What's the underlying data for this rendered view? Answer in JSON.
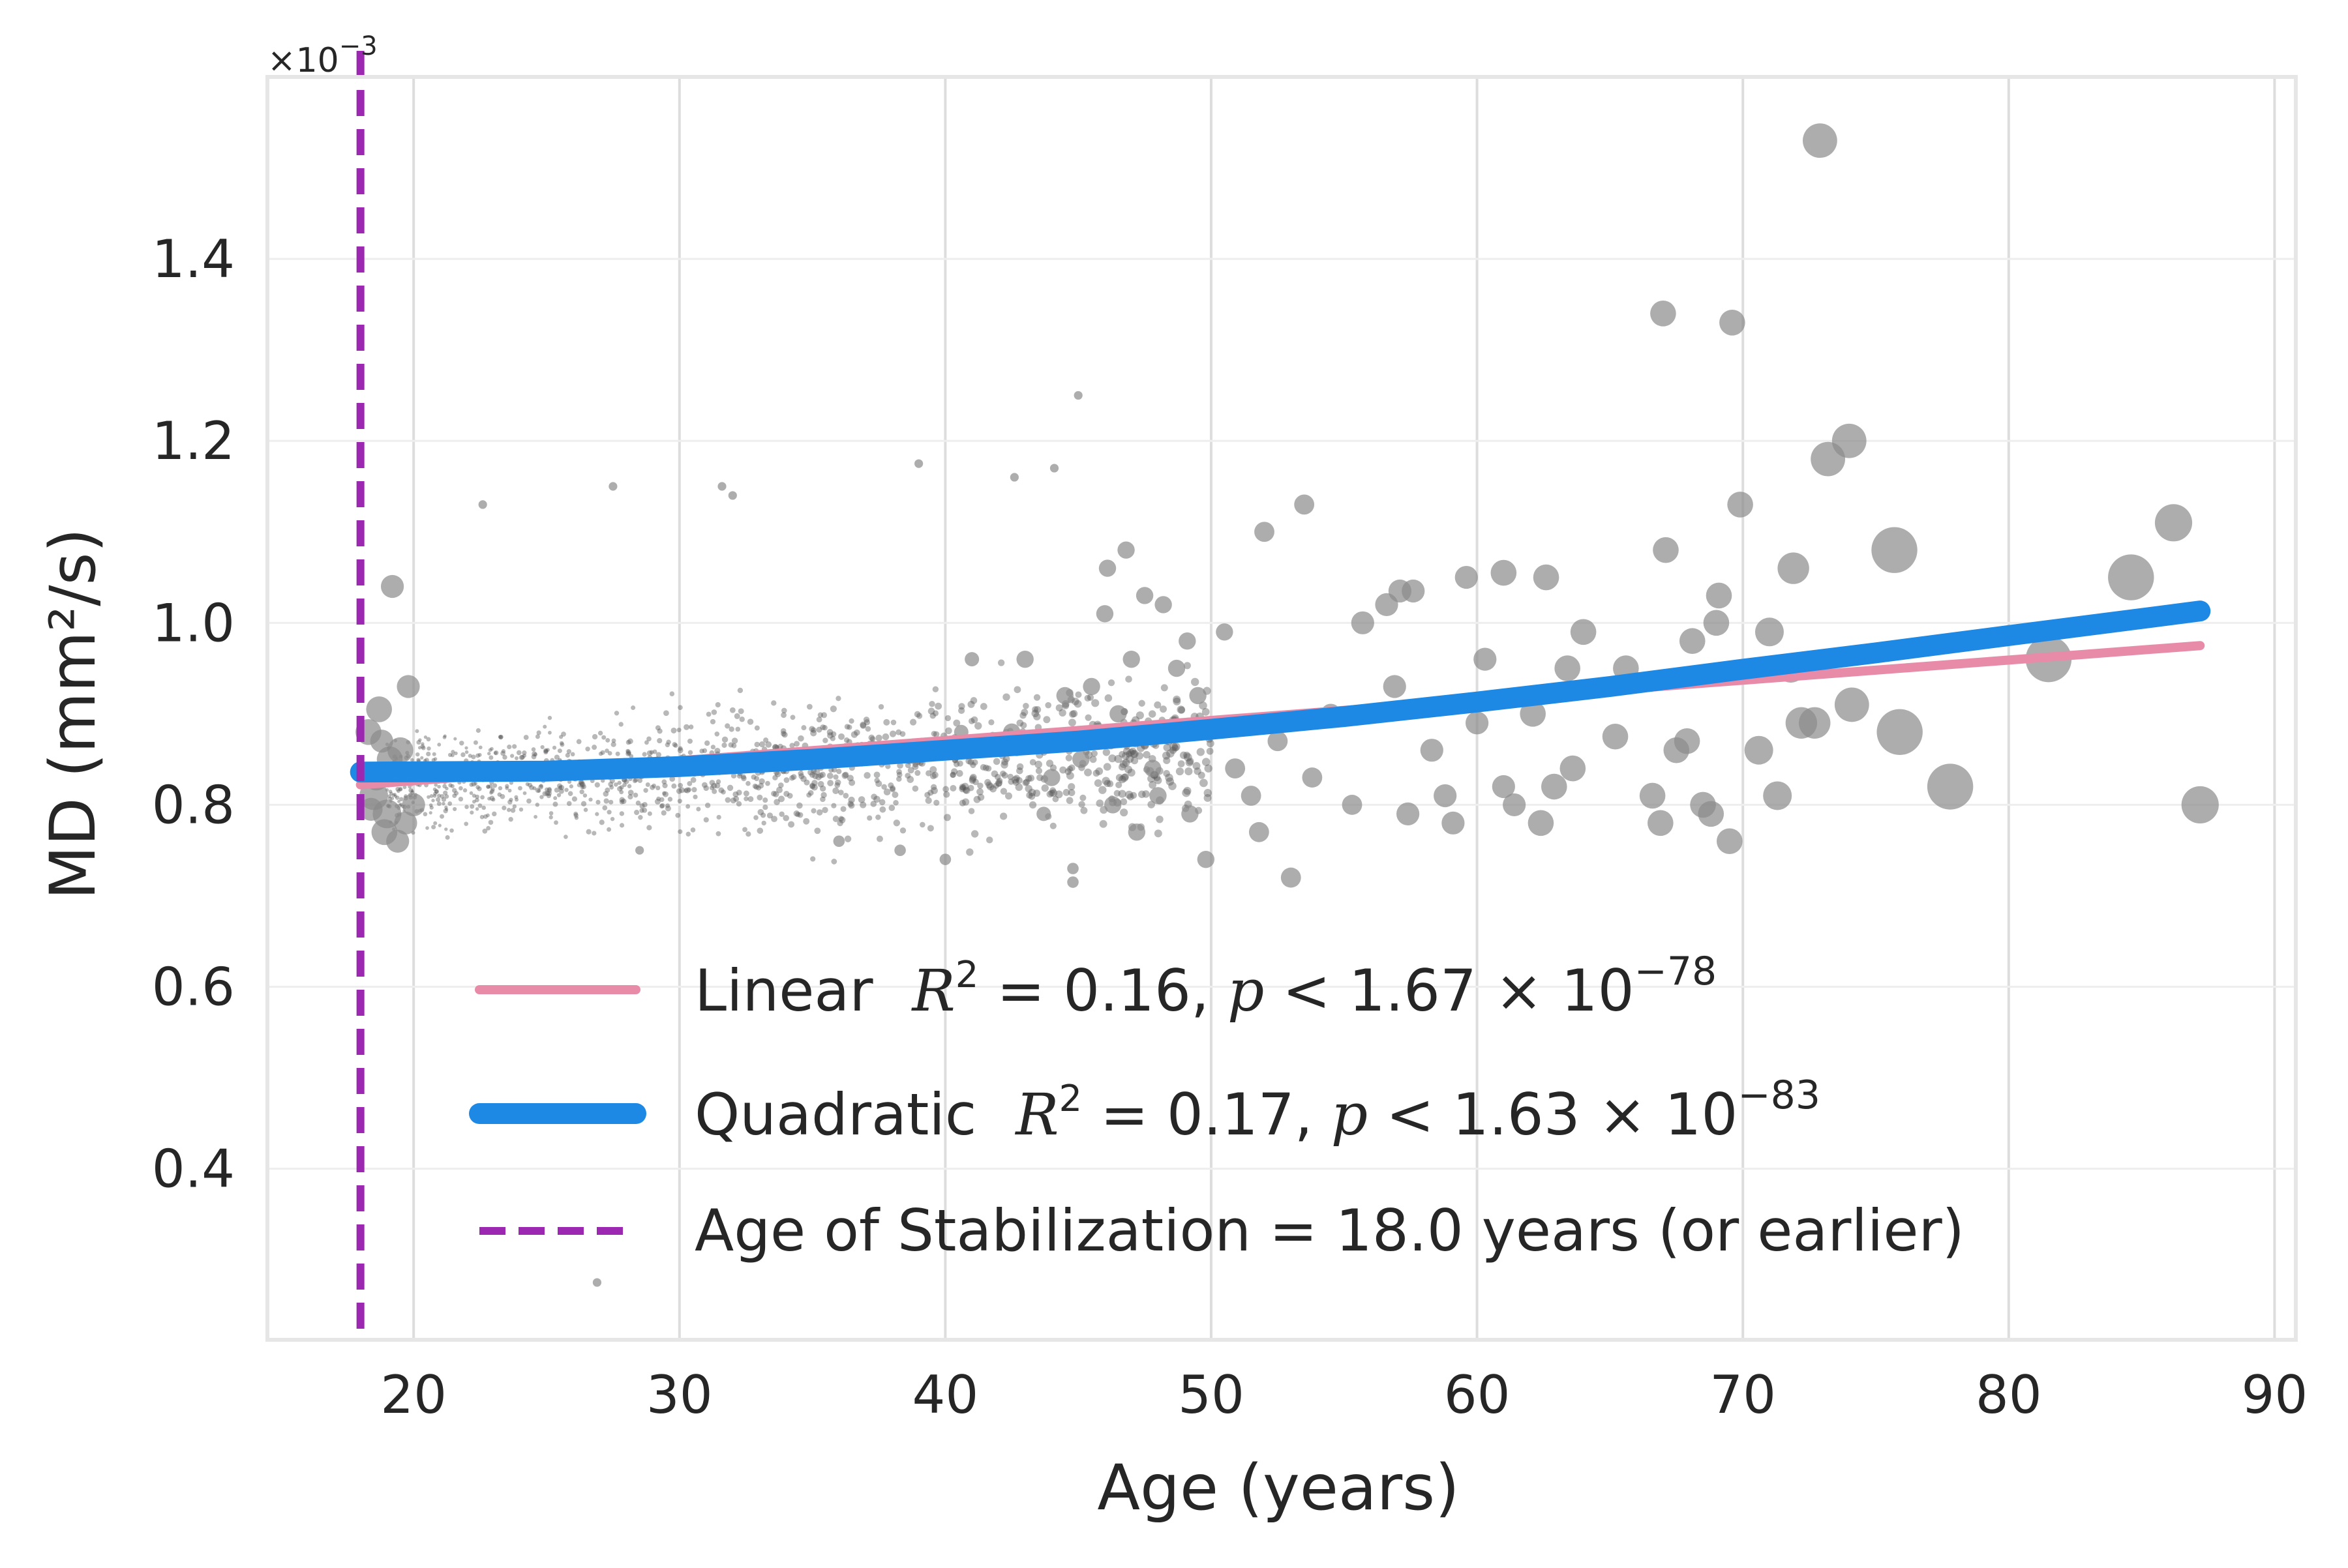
{
  "chart_data": {
    "type": "scatter",
    "xlabel": "Age (years)",
    "ylabel": "MD (mm²/s)",
    "y_multiplier": "×10",
    "y_multiplier_exp": "−3",
    "xlim": [
      14.5,
      90.8
    ],
    "ylim": [
      0.212,
      1.6
    ],
    "x_ticks": [
      20,
      30,
      40,
      50,
      60,
      70,
      80,
      90
    ],
    "x_tick_labels": [
      "20",
      "30",
      "40",
      "50",
      "60",
      "70",
      "80",
      "90"
    ],
    "y_ticks": [
      0.4,
      0.6,
      0.8,
      1.0,
      1.2,
      1.4
    ],
    "y_tick_labels": [
      "0.4",
      "0.6",
      "0.8",
      "1.0",
      "1.2",
      "1.4"
    ],
    "grid": true,
    "legend_position": "lower-right",
    "series": [
      {
        "name": "Linear",
        "kind": "line",
        "color": "#e78ba8",
        "x": [
          18.0,
          87.2
        ],
        "y": [
          0.822,
          0.975
        ],
        "label_prefix": "Linear",
        "stats": {
          "r2": "0.16",
          "p_mant": "1.67",
          "p_exp": "−78"
        }
      },
      {
        "name": "Quadratic",
        "kind": "line",
        "color": "#1e88e5",
        "x": [
          18,
          25,
          30,
          35,
          40,
          45,
          50,
          55,
          60,
          65,
          70,
          75,
          80,
          87.2
        ],
        "y": [
          0.836,
          0.837,
          0.842,
          0.85,
          0.86,
          0.87,
          0.883,
          0.897,
          0.913,
          0.93,
          0.949,
          0.967,
          0.986,
          1.013
        ],
        "label_prefix": "Quadratic",
        "stats": {
          "r2": "0.17",
          "p_mant": "1.63",
          "p_exp": "−83"
        }
      },
      {
        "name": "Age of Stabilization",
        "kind": "vline",
        "color": "#9c27b0",
        "x": 18.0,
        "label": "Age of Stabilization = 18.0 years (or earlier)"
      }
    ],
    "scatter_points": [
      [
        18.3,
        0.88,
        9
      ],
      [
        18.7,
        0.905,
        9
      ],
      [
        19.2,
        1.04,
        8
      ],
      [
        19.0,
        0.79,
        10
      ],
      [
        18.5,
        0.81,
        10
      ],
      [
        19.5,
        0.86,
        9
      ],
      [
        18.9,
        0.77,
        9
      ],
      [
        19.8,
        0.93,
        8
      ],
      [
        19.4,
        0.76,
        8
      ],
      [
        18.6,
        0.83,
        9
      ],
      [
        20.0,
        0.8,
        8
      ],
      [
        19.1,
        0.85,
        9
      ],
      [
        18.4,
        0.795,
        8
      ],
      [
        19.7,
        0.78,
        8
      ],
      [
        18.8,
        0.87,
        8
      ],
      [
        22.6,
        1.13,
        3
      ],
      [
        27.5,
        1.15,
        3
      ],
      [
        31.6,
        1.15,
        3
      ],
      [
        32.0,
        1.14,
        3
      ],
      [
        39.0,
        1.175,
        3
      ],
      [
        45.0,
        1.25,
        3
      ],
      [
        44.1,
        1.17,
        3
      ],
      [
        42.6,
        1.16,
        3
      ],
      [
        26.9,
        0.275,
        3
      ],
      [
        28.5,
        0.75,
        3
      ],
      [
        44.8,
        0.715,
        4
      ],
      [
        44.8,
        0.73,
        4
      ],
      [
        38.3,
        0.75,
        4
      ],
      [
        40.0,
        0.74,
        4
      ],
      [
        36.0,
        0.76,
        4
      ],
      [
        46.1,
        1.06,
        6
      ],
      [
        46.8,
        1.08,
        6
      ],
      [
        46.0,
        1.01,
        6
      ],
      [
        47.5,
        1.03,
        6
      ],
      [
        48.2,
        1.02,
        6
      ],
      [
        49.1,
        0.98,
        6
      ],
      [
        45.5,
        0.93,
        6
      ],
      [
        47.0,
        0.96,
        6
      ],
      [
        48.7,
        0.95,
        6
      ],
      [
        49.5,
        0.92,
        6
      ],
      [
        46.5,
        0.9,
        6
      ],
      [
        44.5,
        0.92,
        6
      ],
      [
        43.0,
        0.96,
        6
      ],
      [
        45.1,
        0.85,
        6
      ],
      [
        47.8,
        0.84,
        6
      ],
      [
        46.3,
        0.8,
        6
      ],
      [
        48.0,
        0.81,
        6
      ],
      [
        49.2,
        0.79,
        6
      ],
      [
        44.0,
        0.83,
        6
      ],
      [
        42.5,
        0.88,
        6
      ],
      [
        41.0,
        0.96,
        5
      ],
      [
        40.6,
        0.88,
        5
      ],
      [
        43.7,
        0.79,
        5
      ],
      [
        47.2,
        0.77,
        6
      ],
      [
        49.8,
        0.74,
        6
      ],
      [
        50.5,
        0.99,
        6
      ],
      [
        52.0,
        1.1,
        7
      ],
      [
        53.5,
        1.13,
        7
      ],
      [
        53.0,
        0.72,
        7
      ],
      [
        51.8,
        0.77,
        7
      ],
      [
        50.9,
        0.84,
        7
      ],
      [
        51.5,
        0.81,
        7
      ],
      [
        52.5,
        0.87,
        7
      ],
      [
        53.8,
        0.83,
        7
      ],
      [
        54.5,
        0.9,
        7
      ],
      [
        55.3,
        0.8,
        7
      ],
      [
        55.7,
        1.0,
        8
      ],
      [
        56.6,
        1.02,
        8
      ],
      [
        57.1,
        1.035,
        8
      ],
      [
        57.6,
        1.035,
        8
      ],
      [
        56.9,
        0.93,
        8
      ],
      [
        57.4,
        0.79,
        8
      ],
      [
        58.3,
        0.86,
        8
      ],
      [
        58.8,
        0.81,
        8
      ],
      [
        59.1,
        0.78,
        8
      ],
      [
        59.6,
        1.05,
        8
      ],
      [
        60.3,
        0.96,
        8
      ],
      [
        60.0,
        0.89,
        8
      ],
      [
        61.0,
        0.82,
        8
      ],
      [
        61.4,
        0.8,
        8
      ],
      [
        61.0,
        1.055,
        9
      ],
      [
        62.6,
        1.05,
        9
      ],
      [
        62.1,
        0.9,
        9
      ],
      [
        62.4,
        0.78,
        9
      ],
      [
        62.9,
        0.82,
        9
      ],
      [
        63.6,
        0.84,
        9
      ],
      [
        63.4,
        0.95,
        9
      ],
      [
        64.0,
        0.99,
        9
      ],
      [
        65.2,
        0.875,
        9
      ],
      [
        65.6,
        0.95,
        9
      ],
      [
        66.6,
        0.81,
        9
      ],
      [
        66.9,
        0.78,
        9
      ],
      [
        67.0,
        1.34,
        9
      ],
      [
        67.1,
        1.08,
        9
      ],
      [
        67.5,
        0.86,
        9
      ],
      [
        67.9,
        0.87,
        9
      ],
      [
        68.1,
        0.98,
        9
      ],
      [
        68.5,
        0.8,
        9
      ],
      [
        68.8,
        0.79,
        9
      ],
      [
        69.0,
        1.0,
        9
      ],
      [
        69.1,
        1.03,
        9
      ],
      [
        69.5,
        0.76,
        9
      ],
      [
        69.6,
        1.33,
        9
      ],
      [
        69.9,
        1.13,
        9
      ],
      [
        70.6,
        0.86,
        10
      ],
      [
        71.0,
        0.99,
        10
      ],
      [
        71.3,
        0.81,
        10
      ],
      [
        71.8,
        0.95,
        10
      ],
      [
        71.9,
        1.06,
        11
      ],
      [
        72.2,
        0.89,
        11
      ],
      [
        72.7,
        0.89,
        11
      ],
      [
        72.9,
        1.53,
        12
      ],
      [
        73.2,
        1.18,
        12
      ],
      [
        74.0,
        1.2,
        12
      ],
      [
        74.1,
        0.91,
        12
      ],
      [
        75.7,
        1.08,
        16
      ],
      [
        75.9,
        0.88,
        16
      ],
      [
        77.8,
        0.82,
        16
      ],
      [
        81.5,
        0.96,
        16
      ],
      [
        84.6,
        1.05,
        16
      ],
      [
        86.2,
        1.11,
        13
      ],
      [
        87.2,
        0.8,
        13
      ]
    ]
  }
}
